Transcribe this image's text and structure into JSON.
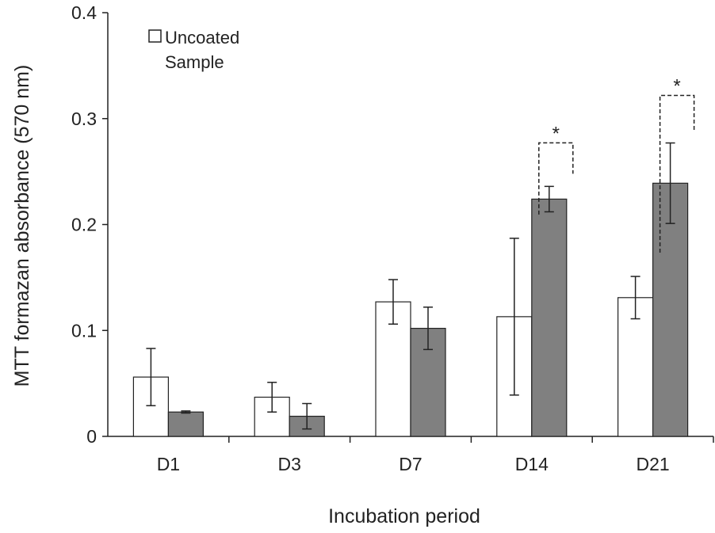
{
  "chart_data": {
    "type": "bar",
    "title": "",
    "xlabel": "Incubation period",
    "ylabel": "MTT formazan absorbance  (570 nm)",
    "ylim": [
      0,
      0.4
    ],
    "yticks": [
      "0",
      "0.1",
      "0.2",
      "0.3",
      "0.4"
    ],
    "ytick_values": [
      0,
      0.1,
      0.2,
      0.3,
      0.4
    ],
    "categories": [
      "D1",
      "D3",
      "D7",
      "D14",
      "D21"
    ],
    "grid": false,
    "legend_position": "top-left",
    "series": [
      {
        "name": "Uncoated",
        "color": "#ffffff",
        "values": [
          0.056,
          0.037,
          0.127,
          0.113,
          0.131
        ],
        "errors": [
          0.027,
          0.014,
          0.021,
          0.074,
          0.02
        ]
      },
      {
        "name": "Sample",
        "color": "#808080",
        "values": [
          0.023,
          0.019,
          0.102,
          0.224,
          0.239
        ],
        "errors": [
          0.001,
          0.012,
          0.02,
          0.012,
          0.038
        ]
      }
    ],
    "significance": [
      {
        "category": "D14",
        "label": "*"
      },
      {
        "category": "D21",
        "label": "*"
      }
    ]
  }
}
